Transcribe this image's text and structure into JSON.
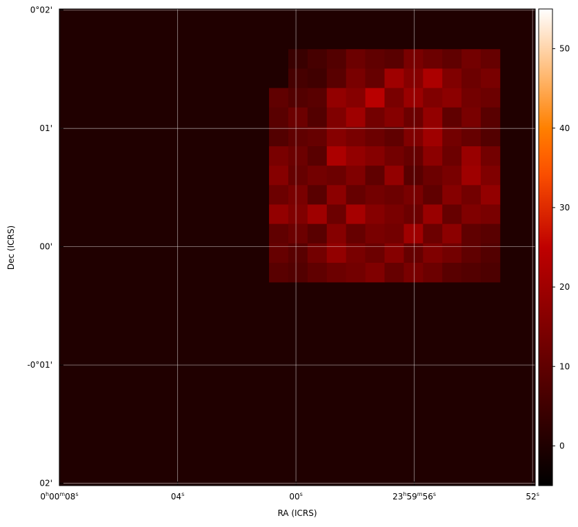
{
  "chart_data": {
    "type": "image",
    "xlabel": "RA (ICRS)",
    "ylabel": "Dec (ICRS)",
    "xlim": [
      8.0,
      -8.09
    ],
    "ylim": [
      -2.02,
      2.01
    ],
    "xticks": [
      {
        "value": 8,
        "label": "0h00m08s"
      },
      {
        "value": 4,
        "label": "04s"
      },
      {
        "value": 0,
        "label": "00s"
      },
      {
        "value": -4,
        "label": "23h59m56s"
      },
      {
        "value": -8,
        "label": "52s"
      }
    ],
    "yticks": [
      {
        "value": 2,
        "label": "0°02'"
      },
      {
        "value": 1,
        "label": "01'"
      },
      {
        "value": 0,
        "label": "00'"
      },
      {
        "value": -1,
        "label": "-0°01'"
      },
      {
        "value": -2,
        "label": "02'"
      }
    ],
    "grid": true,
    "colormap": "gist_heat",
    "clim": [
      -5,
      55
    ],
    "cticks": [
      0,
      10,
      20,
      30,
      40,
      50
    ],
    "background_value": 0,
    "extent": [
      0.91,
      -6.9,
      -0.3,
      1.67
    ],
    "values": [
      [
        0,
        4,
        6,
        8,
        12,
        10,
        9,
        14,
        12,
        10,
        13,
        11
      ],
      [
        0,
        6,
        5,
        9,
        14,
        11,
        20,
        16,
        22,
        15,
        12,
        14
      ],
      [
        10,
        8,
        9,
        18,
        16,
        24,
        14,
        19,
        15,
        17,
        13,
        12
      ],
      [
        9,
        12,
        8,
        15,
        20,
        13,
        16,
        12,
        18,
        10,
        14,
        9
      ],
      [
        8,
        10,
        11,
        16,
        14,
        12,
        10,
        15,
        20,
        13,
        11,
        8
      ],
      [
        14,
        12,
        9,
        22,
        18,
        16,
        13,
        11,
        17,
        12,
        19,
        13
      ],
      [
        16,
        11,
        13,
        12,
        15,
        10,
        18,
        9,
        12,
        14,
        20,
        15
      ],
      [
        12,
        14,
        9,
        17,
        11,
        13,
        12,
        14,
        10,
        16,
        13,
        18
      ],
      [
        18,
        15,
        20,
        12,
        21,
        16,
        14,
        12,
        19,
        11,
        15,
        14
      ],
      [
        10,
        12,
        9,
        16,
        11,
        14,
        13,
        20,
        12,
        17,
        10,
        9
      ],
      [
        11,
        9,
        13,
        18,
        14,
        12,
        16,
        11,
        15,
        13,
        10,
        8
      ],
      [
        9,
        8,
        10,
        12,
        13,
        15,
        11,
        14,
        12,
        9,
        8,
        7
      ]
    ]
  }
}
